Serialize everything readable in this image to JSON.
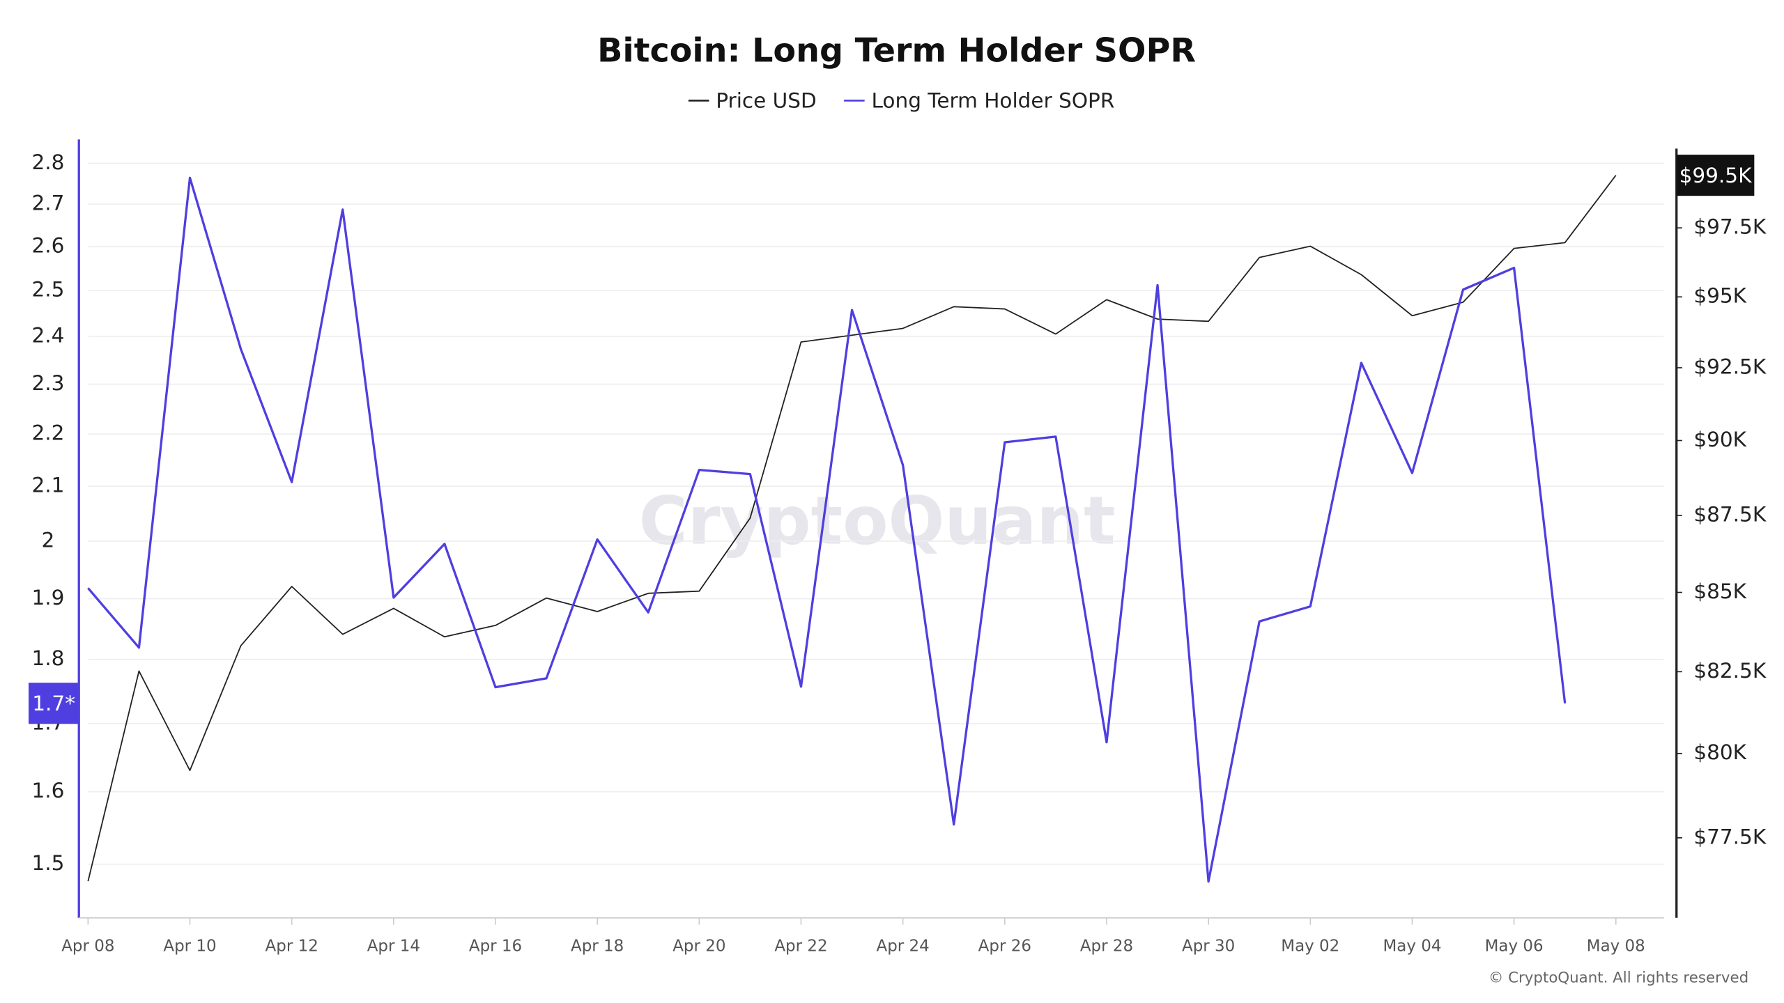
{
  "chart_data": {
    "type": "line",
    "title": "Bitcoin: Long Term Holder SOPR",
    "watermark": "CryptoQuant",
    "footer": "© CryptoQuant. All rights reserved",
    "categories": [
      "Apr 08",
      null,
      "Apr 10",
      null,
      "Apr 12",
      null,
      "Apr 14",
      null,
      "Apr 16",
      null,
      "Apr 18",
      null,
      "Apr 20",
      null,
      "Apr 22",
      null,
      "Apr 24",
      null,
      "Apr 26",
      null,
      "Apr 28",
      null,
      "Apr 30",
      null,
      "May 02",
      null,
      "May 04",
      null,
      "May 06",
      null,
      "May 08"
    ],
    "log_scale": true,
    "grid": true,
    "ylim": [
      1.43,
      2.86
    ],
    "yticks": [
      1.5,
      1.6,
      1.7,
      1.8,
      1.9,
      2,
      2.1,
      2.2,
      2.3,
      2.4,
      2.5,
      2.6,
      2.7,
      2.8
    ],
    "y2lim": [
      75200,
      100800
    ],
    "y2ticks": [
      {
        "value": 77500,
        "label": "$77.5K"
      },
      {
        "value": 80000,
        "label": "$80K"
      },
      {
        "value": 82500,
        "label": "$82.5K"
      },
      {
        "value": 85000,
        "label": "$85K"
      },
      {
        "value": 87500,
        "label": "$87.5K"
      },
      {
        "value": 90000,
        "label": "$90K"
      },
      {
        "value": 92500,
        "label": "$92.5K"
      },
      {
        "value": 95000,
        "label": "$95K"
      },
      {
        "value": 97500,
        "label": "$97.5K"
      }
    ],
    "series": [
      {
        "name": "Price USD",
        "color": "#222222",
        "axis": "y2",
        "values": [
          76245,
          82520,
          79490,
          83310,
          85190,
          83670,
          84490,
          83590,
          83950,
          84820,
          84390,
          84970,
          85040,
          87410,
          93400,
          93640,
          93880,
          94650,
          94570,
          93680,
          94900,
          94210,
          94130,
          96420,
          96830,
          95800,
          94330,
          94810,
          96750,
          96960,
          99450
        ],
        "current_label": "$99.5K"
      },
      {
        "name": "Long Term Holder SOPR",
        "color": "#4f3ee0",
        "axis": "y",
        "values": [
          1.918,
          1.819,
          2.764,
          2.373,
          2.108,
          2.687,
          1.902,
          1.995,
          1.756,
          1.77,
          2.003,
          1.877,
          2.131,
          2.123,
          1.757,
          2.457,
          2.14,
          1.554,
          2.184,
          2.195,
          1.672,
          2.512,
          1.477,
          1.862,
          1.887,
          2.344,
          2.125,
          2.502,
          2.551,
          1.731,
          null
        ],
        "current_label": "1.7*"
      }
    ]
  }
}
